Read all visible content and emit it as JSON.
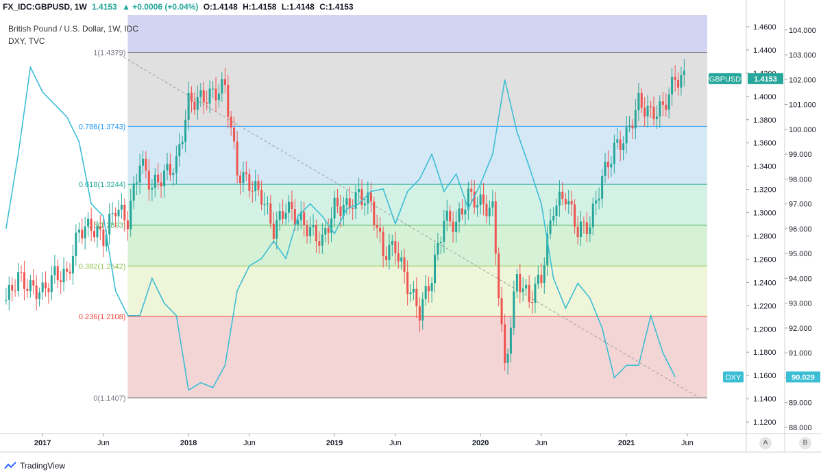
{
  "header": {
    "symbol": "FX_IDC:GBPUSD, 1W",
    "price": "1.4153",
    "change": "▲ +0.0006 (+0.04%)",
    "o": "O:1.4148",
    "h": "H:1.4158",
    "l": "L:1.4148",
    "c": "C:1.4153"
  },
  "legend": {
    "main": "British Pound / U.S. Dollar, 1W, IDC",
    "overlay": "DXY, TVC"
  },
  "footer": {
    "brand": "TradingView"
  },
  "scale_buttons": {
    "a": "A",
    "b": "B"
  },
  "colors": {
    "up": "#26a69a",
    "down": "#ef5350",
    "dxy_line": "#3bbdd4",
    "trendline": "#9e9e9e",
    "fib_top": "#d3d3f2",
    "fib_1_0786": "#e0e0e0",
    "fib_0786_0618": "#d5e8f5",
    "fib_0618_05": "#d4f1e6",
    "fib_05_0382": "#d6f2d6",
    "fib_0382_0236": "#eef5d8",
    "fib_0236_0": "#f3d5d6"
  },
  "chart_data": {
    "type": "line",
    "title": "British Pound / U.S. Dollar, 1W, IDC",
    "x_labels": [
      "2017",
      "Jun",
      "2018",
      "Jun",
      "2019",
      "Jun",
      "2020",
      "Jun",
      "2021",
      "Jun"
    ],
    "left_axis": {
      "label": "GBPUSD",
      "ylim": [
        1.11,
        1.47
      ],
      "ticks": [
        "1.4600",
        "1.4400",
        "1.4200",
        "1.4000",
        "1.3800",
        "1.3600",
        "1.3400",
        "1.3200",
        "1.3000",
        "1.2800",
        "1.2600",
        "1.2400",
        "1.2200",
        "1.2000",
        "1.1800",
        "1.1600",
        "1.1400",
        "1.1200"
      ]
    },
    "right_axis": {
      "label": "DXY",
      "ylim": [
        87.75,
        104.6
      ],
      "ticks": [
        "104.000",
        "103.000",
        "102.000",
        "101.000",
        "100.000",
        "99.000",
        "98.000",
        "97.000",
        "96.000",
        "95.000",
        "94.000",
        "93.000",
        "92.000",
        "91.000",
        "90.000",
        "89.000",
        "88.000"
      ]
    },
    "fibonacci": {
      "start": "2017-08",
      "levels": [
        {
          "ratio": "1",
          "value": 1.4379,
          "label": "1(1.4379)",
          "color": "#787b86"
        },
        {
          "ratio": "0.786",
          "value": 1.3743,
          "label": "0.786(1.3743)",
          "color": "#2196f3"
        },
        {
          "ratio": "0.618",
          "value": 1.3244,
          "label": "0.618(1.3244)",
          "color": "#26a69a"
        },
        {
          "ratio": "0.5",
          "value": 1.2893,
          "label": "0.5(1.2893)",
          "color": "#4caf50"
        },
        {
          "ratio": "0.382",
          "value": 1.2542,
          "label": "0.382(1.2542)",
          "color": "#8bc34a"
        },
        {
          "ratio": "0.236",
          "value": 1.2108,
          "label": "0.236(1.2108)",
          "color": "#f44336"
        },
        {
          "ratio": "0",
          "value": 1.1407,
          "label": "0(1.1407)",
          "color": "#787b86"
        }
      ]
    },
    "trendline": {
      "from": [
        "2017-07",
        1.4379
      ],
      "to": [
        "2021-07",
        1.1407
      ]
    },
    "gbpusd_weekly_close": [
      [
        "2016-10",
        1.225
      ],
      [
        "2016-11",
        1.245
      ],
      [
        "2016-12",
        1.235
      ],
      [
        "2017-01",
        1.232
      ],
      [
        "2017-02",
        1.247
      ],
      [
        "2017-03",
        1.245
      ],
      [
        "2017-04",
        1.285
      ],
      [
        "2017-05",
        1.288
      ],
      [
        "2017-06",
        1.278
      ],
      [
        "2017-07",
        1.305
      ],
      [
        "2017-08",
        1.293
      ],
      [
        "2017-09",
        1.345
      ],
      [
        "2017-10",
        1.322
      ],
      [
        "2017-11",
        1.333
      ],
      [
        "2017-12",
        1.342
      ],
      [
        "2018-01",
        1.395
      ],
      [
        "2018-02",
        1.398
      ],
      [
        "2018-03",
        1.402
      ],
      [
        "2018-04",
        1.409
      ],
      [
        "2018-05",
        1.335
      ],
      [
        "2018-06",
        1.325
      ],
      [
        "2018-07",
        1.315
      ],
      [
        "2018-08",
        1.285
      ],
      [
        "2018-09",
        1.305
      ],
      [
        "2018-10",
        1.295
      ],
      [
        "2018-11",
        1.285
      ],
      [
        "2018-12",
        1.275
      ],
      [
        "2019-01",
        1.305
      ],
      [
        "2019-02",
        1.305
      ],
      [
        "2019-03",
        1.315
      ],
      [
        "2019-04",
        1.308
      ],
      [
        "2019-05",
        1.265
      ],
      [
        "2019-06",
        1.271
      ],
      [
        "2019-07",
        1.238
      ],
      [
        "2019-08",
        1.215
      ],
      [
        "2019-09",
        1.245
      ],
      [
        "2019-10",
        1.295
      ],
      [
        "2019-11",
        1.29
      ],
      [
        "2019-12",
        1.315
      ],
      [
        "2020-01",
        1.308
      ],
      [
        "2020-02",
        1.302
      ],
      [
        "2020-03",
        1.165
      ],
      [
        "2020-04",
        1.245
      ],
      [
        "2020-05",
        1.225
      ],
      [
        "2020-06",
        1.245
      ],
      [
        "2020-07",
        1.305
      ],
      [
        "2020-08",
        1.315
      ],
      [
        "2020-09",
        1.285
      ],
      [
        "2020-10",
        1.29
      ],
      [
        "2020-11",
        1.33
      ],
      [
        "2020-12",
        1.355
      ],
      [
        "2021-01",
        1.366
      ],
      [
        "2021-02",
        1.395
      ],
      [
        "2021-03",
        1.385
      ],
      [
        "2021-04",
        1.39
      ],
      [
        "2021-05",
        1.4153
      ]
    ],
    "dxy_weekly": [
      [
        "2016-10",
        96.0
      ],
      [
        "2016-11",
        99.0
      ],
      [
        "2016-12",
        102.5
      ],
      [
        "2017-01",
        101.5
      ],
      [
        "2017-02",
        101.0
      ],
      [
        "2017-03",
        100.5
      ],
      [
        "2017-04",
        99.5
      ],
      [
        "2017-05",
        97.0
      ],
      [
        "2017-06",
        96.5
      ],
      [
        "2017-07",
        93.5
      ],
      [
        "2017-08",
        92.5
      ],
      [
        "2017-09",
        92.5
      ],
      [
        "2017-10",
        94.0
      ],
      [
        "2017-11",
        93.0
      ],
      [
        "2017-12",
        92.5
      ],
      [
        "2018-01",
        89.5
      ],
      [
        "2018-02",
        89.8
      ],
      [
        "2018-03",
        89.6
      ],
      [
        "2018-04",
        90.5
      ],
      [
        "2018-05",
        93.5
      ],
      [
        "2018-06",
        94.5
      ],
      [
        "2018-07",
        94.8
      ],
      [
        "2018-08",
        95.5
      ],
      [
        "2018-09",
        94.8
      ],
      [
        "2018-10",
        96.5
      ],
      [
        "2018-11",
        97.0
      ],
      [
        "2018-12",
        96.5
      ],
      [
        "2019-01",
        95.8
      ],
      [
        "2019-02",
        96.8
      ],
      [
        "2019-03",
        97.0
      ],
      [
        "2019-04",
        97.5
      ],
      [
        "2019-05",
        97.6
      ],
      [
        "2019-06",
        96.2
      ],
      [
        "2019-07",
        97.5
      ],
      [
        "2019-08",
        98.0
      ],
      [
        "2019-09",
        99.0
      ],
      [
        "2019-10",
        97.5
      ],
      [
        "2019-11",
        98.2
      ],
      [
        "2019-12",
        96.8
      ],
      [
        "2020-01",
        97.8
      ],
      [
        "2020-02",
        99.0
      ],
      [
        "2020-03",
        102.0
      ],
      [
        "2020-04",
        99.9
      ],
      [
        "2020-05",
        98.5
      ],
      [
        "2020-06",
        97.0
      ],
      [
        "2020-07",
        94.0
      ],
      [
        "2020-08",
        92.8
      ],
      [
        "2020-09",
        93.8
      ],
      [
        "2020-10",
        93.2
      ],
      [
        "2020-11",
        92.0
      ],
      [
        "2020-12",
        90.0
      ],
      [
        "2021-01",
        90.5
      ],
      [
        "2021-02",
        90.5
      ],
      [
        "2021-03",
        92.5
      ],
      [
        "2021-04",
        91.0
      ],
      [
        "2021-05",
        90.029
      ]
    ],
    "last_value_labels": {
      "gbpusd": {
        "name": "GBPUSD",
        "value": "1.4153"
      },
      "dxy": {
        "name": "DXY",
        "value": "90.029"
      }
    }
  }
}
